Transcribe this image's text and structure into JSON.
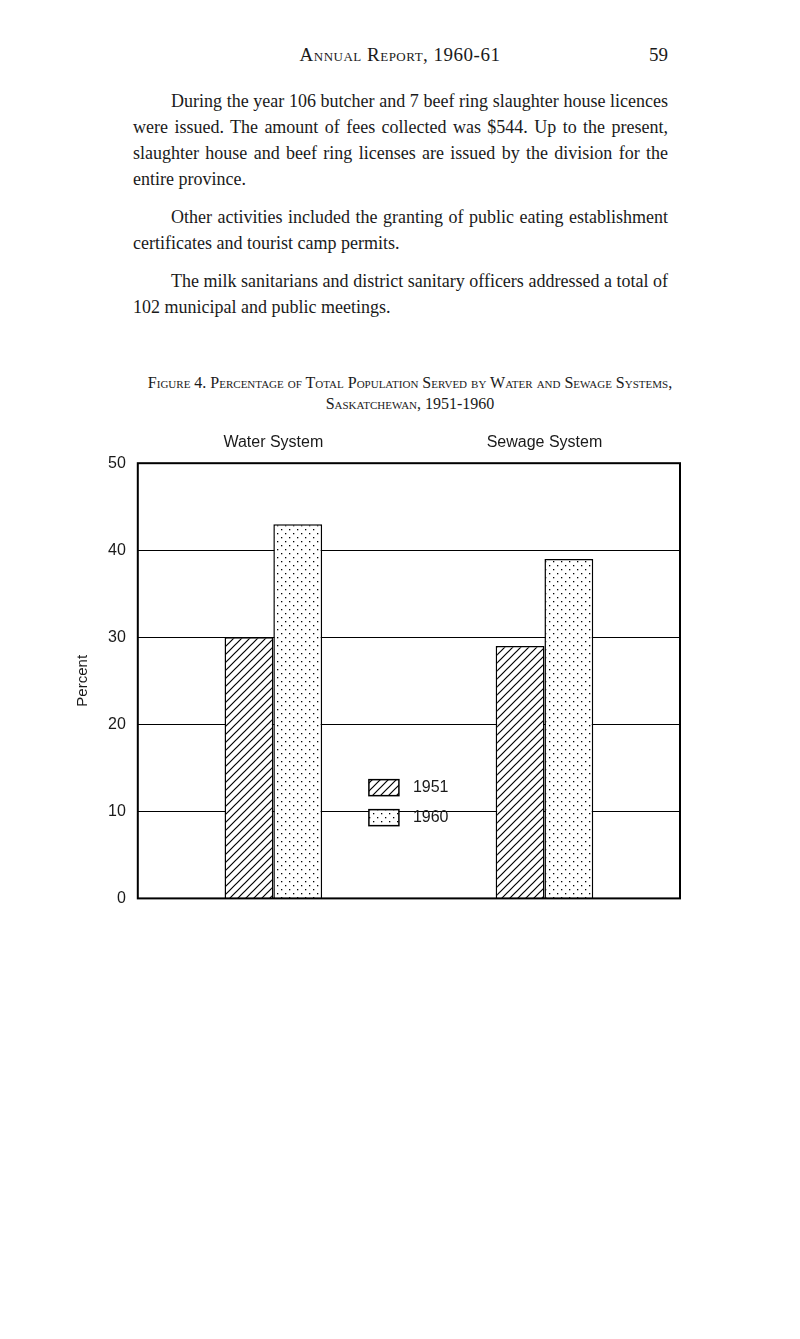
{
  "header": {
    "title": "Annual Report, 1960-61",
    "page": "59"
  },
  "paragraphs": [
    "During the year 106 butcher and 7 beef ring slaughter house licences were issued. The amount of fees collected was $544. Up to the present, slaughter house and beef ring licenses are issued by the division for the entire province.",
    "Other activities included the granting of public eating establishment certificates and tourist camp permits.",
    "The milk sanitarians and district sanitary officers addressed a total of 102 municipal and public meetings."
  ],
  "chart_data": {
    "type": "bar",
    "title": "Figure 4. Percentage of Total Population Served by Water and Sewage Systems, Saskatchewan, 1951-1960",
    "y_label": "Percent",
    "categories": [
      "Water System",
      "Sewage System"
    ],
    "series": [
      {
        "name": "1951",
        "color": "#000000",
        "values": [
          30,
          29
        ]
      },
      {
        "name": "1960",
        "color": "#000000",
        "values": [
          43,
          39
        ]
      }
    ],
    "ylim": [
      0,
      50
    ],
    "yticks": [
      0,
      10,
      20,
      30,
      40,
      50
    ],
    "grid": true,
    "legend": "center"
  }
}
